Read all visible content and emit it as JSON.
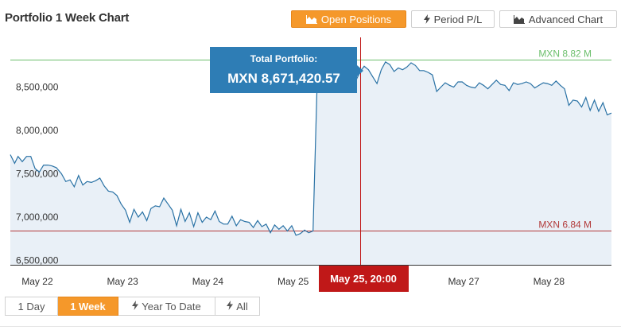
{
  "header": {
    "title": "Portfolio 1 Week Chart"
  },
  "toolbar": {
    "open_positions": "Open Positions",
    "period_pl": "Period P/L",
    "advanced_chart": "Advanced Chart"
  },
  "colors": {
    "accent": "#f5982a",
    "line": "#2a72a5",
    "fill": "#e9f0f7",
    "max": "#6cbf6c",
    "min": "#b23a3a",
    "crosshair": "#c01818",
    "tooltip": "#2e7db5"
  },
  "tooltip": {
    "label": "Total Portfolio:",
    "value": "MXN 8,671,420.57"
  },
  "crosshair": {
    "label": "May 25, 20:00"
  },
  "range_buttons": [
    {
      "label": "1 Day",
      "icon": "",
      "active": false
    },
    {
      "label": "1 Week",
      "icon": "",
      "active": true
    },
    {
      "label": "Year To Date",
      "icon": "bolt-icon",
      "active": false
    },
    {
      "label": "All",
      "icon": "bolt-icon",
      "active": false
    }
  ],
  "chart_data": {
    "type": "area",
    "title": "Portfolio 1 Week Chart",
    "currency": "MXN",
    "ylim": [
      6450000,
      9000000
    ],
    "xlim": [
      -0.27,
      6.78
    ],
    "y_ticks": [
      {
        "value": 6500000,
        "label": "6,500,000"
      },
      {
        "value": 7000000,
        "label": "7,000,000"
      },
      {
        "value": 7500000,
        "label": "7,500,000"
      },
      {
        "value": 8000000,
        "label": "8,000,000"
      },
      {
        "value": 8500000,
        "label": "8,500,000"
      }
    ],
    "x_ticks": [
      {
        "value": 0,
        "label": "May 22"
      },
      {
        "value": 1,
        "label": "May 23"
      },
      {
        "value": 2,
        "label": "May 24"
      },
      {
        "value": 3,
        "label": "May 25"
      },
      {
        "value": 5,
        "label": "May 27"
      },
      {
        "value": 6,
        "label": "May 28"
      }
    ],
    "reference_lines": [
      {
        "value": 8820000,
        "label": "MXN 8.82 M",
        "kind": "max"
      },
      {
        "value": 6840000,
        "label": "MXN 6.84 M",
        "kind": "min"
      }
    ],
    "crosshair_x": 3.83,
    "series": [
      {
        "x": [
          -0.27,
          -0.22,
          -0.18,
          -0.13,
          -0.08,
          -0.03,
          0.02,
          0.07,
          0.12,
          0.17,
          0.22,
          0.27,
          0.33,
          0.38,
          0.43,
          0.48,
          0.53,
          0.58,
          0.63,
          0.68,
          0.73,
          0.78,
          0.83,
          0.88,
          0.93,
          0.98,
          1.03,
          1.08,
          1.13,
          1.18,
          1.23,
          1.28,
          1.33,
          1.38,
          1.43,
          1.48,
          1.53,
          1.58,
          1.63,
          1.68,
          1.73,
          1.78,
          1.83,
          1.88,
          1.93,
          1.98,
          2.03,
          2.08,
          2.13,
          2.18,
          2.23,
          2.28,
          2.33,
          2.38,
          2.43,
          2.48,
          2.53,
          2.58,
          2.63,
          2.68,
          2.73,
          2.78,
          2.83,
          2.88,
          2.93,
          2.98,
          3.03,
          3.08,
          3.13,
          3.18,
          3.23,
          3.28,
          3.33,
          3.38,
          3.43,
          3.48,
          3.53,
          3.58,
          3.63,
          3.68,
          3.73,
          3.78,
          3.83,
          3.88,
          3.93,
          3.98,
          4.03,
          4.08,
          4.13,
          4.18,
          4.23,
          4.28,
          4.33,
          4.38,
          4.43,
          4.48,
          4.53,
          4.58,
          4.63,
          4.68,
          4.73,
          4.78,
          4.83,
          4.88,
          4.93,
          4.98,
          5.03,
          5.08,
          5.13,
          5.18,
          5.23,
          5.28,
          5.33,
          5.38,
          5.43,
          5.48,
          5.53,
          5.58,
          5.63,
          5.68,
          5.73,
          5.78,
          5.83,
          5.88,
          5.93,
          5.98,
          6.03,
          6.08,
          6.13,
          6.18,
          6.23,
          6.28,
          6.33,
          6.38,
          6.43,
          6.48,
          6.53,
          6.58,
          6.63,
          6.68,
          6.73,
          6.78
        ],
        "y": [
          7720000,
          7620000,
          7700000,
          7640000,
          7700000,
          7700000,
          7560000,
          7520000,
          7600000,
          7600000,
          7590000,
          7570000,
          7500000,
          7410000,
          7430000,
          7350000,
          7480000,
          7370000,
          7410000,
          7400000,
          7420000,
          7450000,
          7360000,
          7300000,
          7290000,
          7250000,
          7150000,
          7080000,
          6940000,
          7090000,
          7000000,
          7060000,
          6960000,
          7100000,
          7130000,
          7120000,
          7220000,
          7150000,
          7080000,
          6900000,
          7090000,
          6950000,
          7050000,
          6890000,
          7050000,
          6940000,
          7000000,
          6970000,
          7070000,
          6950000,
          6920000,
          6920000,
          7010000,
          6900000,
          6970000,
          6950000,
          6940000,
          6880000,
          6960000,
          6890000,
          6920000,
          6820000,
          6910000,
          6860000,
          6900000,
          6840000,
          6900000,
          6790000,
          6810000,
          6850000,
          6820000,
          6840000,
          8600000,
          8690000,
          8630000,
          8640000,
          8560000,
          8670000,
          8690000,
          8630000,
          8590000,
          8570000,
          8671420,
          8740000,
          8700000,
          8620000,
          8540000,
          8700000,
          8790000,
          8760000,
          8680000,
          8720000,
          8700000,
          8730000,
          8780000,
          8750000,
          8690000,
          8690000,
          8670000,
          8640000,
          8450000,
          8500000,
          8550000,
          8520000,
          8500000,
          8560000,
          8560000,
          8520000,
          8500000,
          8490000,
          8550000,
          8520000,
          8480000,
          8530000,
          8580000,
          8530000,
          8520000,
          8460000,
          8550000,
          8530000,
          8540000,
          8560000,
          8540000,
          8490000,
          8520000,
          8550000,
          8540000,
          8520000,
          8570000,
          8520000,
          8480000,
          8290000,
          8350000,
          8340000,
          8270000,
          8380000,
          8230000,
          8350000,
          8220000,
          8320000,
          8180000,
          8200000
        ]
      }
    ]
  }
}
